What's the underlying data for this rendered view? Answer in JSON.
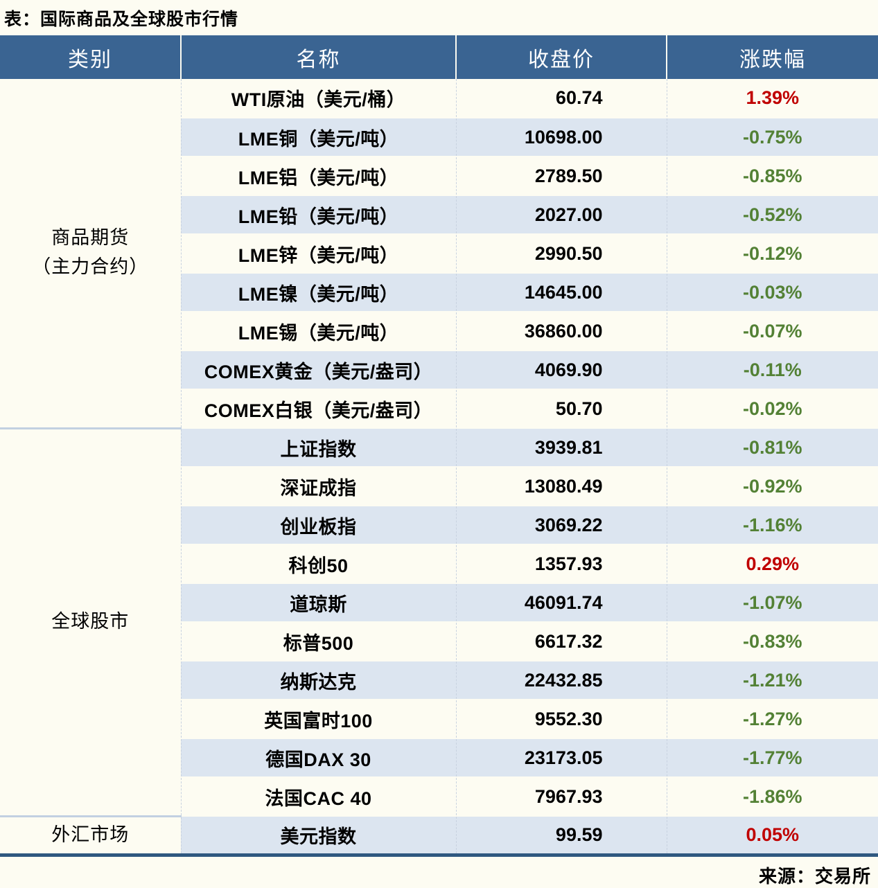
{
  "title": "表：国际商品及全球股市行情",
  "source": "来源：交易所",
  "columns": [
    "类别",
    "名称",
    "收盘价",
    "涨跌幅"
  ],
  "colors": {
    "header-bg": "#3a6492",
    "row-alt": "#dce5f0",
    "bg": "#fdfcf2",
    "up": "#c00000",
    "down": "#538135",
    "table-border": "#2f5880"
  },
  "sections": [
    {
      "category": [
        "商品期货",
        "（主力合约）"
      ],
      "rows": [
        {
          "name": "WTI原油（美元/桶）",
          "close": "60.74",
          "change": "1.39%"
        },
        {
          "name": "LME铜（美元/吨）",
          "close": "10698.00",
          "change": "-0.75%"
        },
        {
          "name": "LME铝（美元/吨）",
          "close": "2789.50",
          "change": "-0.85%"
        },
        {
          "name": "LME铅（美元/吨）",
          "close": "2027.00",
          "change": "-0.52%"
        },
        {
          "name": "LME锌（美元/吨）",
          "close": "2990.50",
          "change": "-0.12%"
        },
        {
          "name": "LME镍（美元/吨）",
          "close": "14645.00",
          "change": "-0.03%"
        },
        {
          "name": "LME锡（美元/吨）",
          "close": "36860.00",
          "change": "-0.07%"
        },
        {
          "name": "COMEX黄金（美元/盎司）",
          "close": "4069.90",
          "change": "-0.11%"
        },
        {
          "name": "COMEX白银（美元/盎司）",
          "close": "50.70",
          "change": "-0.02%"
        }
      ]
    },
    {
      "category": [
        "全球股市"
      ],
      "rows": [
        {
          "name": "上证指数",
          "close": "3939.81",
          "change": "-0.81%"
        },
        {
          "name": "深证成指",
          "close": "13080.49",
          "change": "-0.92%"
        },
        {
          "name": "创业板指",
          "close": "3069.22",
          "change": "-1.16%"
        },
        {
          "name": "科创50",
          "close": "1357.93",
          "change": "0.29%"
        },
        {
          "name": "道琼斯",
          "close": "46091.74",
          "change": "-1.07%"
        },
        {
          "name": "标普500",
          "close": "6617.32",
          "change": "-0.83%"
        },
        {
          "name": "纳斯达克",
          "close": "22432.85",
          "change": "-1.21%"
        },
        {
          "name": "英国富时100",
          "close": "9552.30",
          "change": "-1.27%"
        },
        {
          "name": "德国DAX 30",
          "close": "23173.05",
          "change": "-1.77%"
        },
        {
          "name": "法国CAC 40",
          "close": "7967.93",
          "change": "-1.86%"
        }
      ]
    },
    {
      "category": [
        "外汇市场"
      ],
      "rows": [
        {
          "name": "美元指数",
          "close": "99.59",
          "change": "0.05%"
        }
      ]
    }
  ]
}
